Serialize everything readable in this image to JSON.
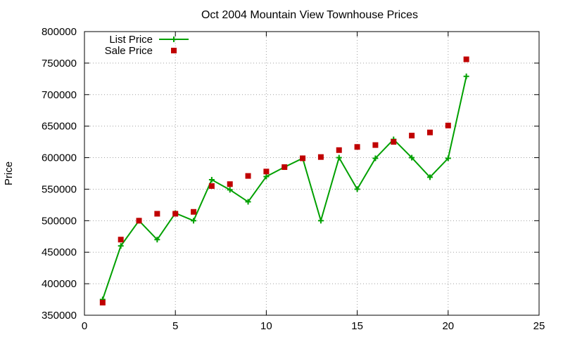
{
  "chart_data": {
    "type": "scatter",
    "title": "Oct 2004 Mountain View Townhouse Prices",
    "xlabel": "",
    "ylabel": "Price",
    "xlim": [
      0,
      25
    ],
    "ylim": [
      350000,
      800000
    ],
    "xticks": [
      0,
      5,
      10,
      15,
      20,
      25
    ],
    "yticks": [
      350000,
      400000,
      450000,
      500000,
      550000,
      600000,
      650000,
      700000,
      750000,
      800000
    ],
    "grid": true,
    "legend": "top-left",
    "series": [
      {
        "name": "List Price",
        "style": "line-with-plus-markers",
        "color": "#00a000",
        "x": [
          1,
          2,
          3,
          4,
          5,
          6,
          7,
          8,
          9,
          10,
          11,
          12,
          13,
          14,
          15,
          16,
          17,
          18,
          19,
          20,
          21
        ],
        "y": [
          375000,
          460000,
          500000,
          470000,
          512000,
          500000,
          565000,
          549000,
          530000,
          570000,
          585000,
          599000,
          500000,
          600000,
          550000,
          599000,
          629000,
          600000,
          569000,
          599000,
          729000
        ]
      },
      {
        "name": "Sale Price",
        "style": "square-markers",
        "color": "#c00000",
        "x": [
          1,
          2,
          3,
          4,
          5,
          6,
          7,
          8,
          9,
          10,
          11,
          12,
          13,
          14,
          15,
          16,
          17,
          18,
          19,
          20,
          21
        ],
        "y": [
          370000,
          470000,
          500000,
          511000,
          511000,
          514000,
          555000,
          558000,
          571000,
          578000,
          585000,
          599000,
          601000,
          612000,
          617000,
          620000,
          625000,
          635000,
          640000,
          651000,
          756000
        ]
      }
    ]
  }
}
